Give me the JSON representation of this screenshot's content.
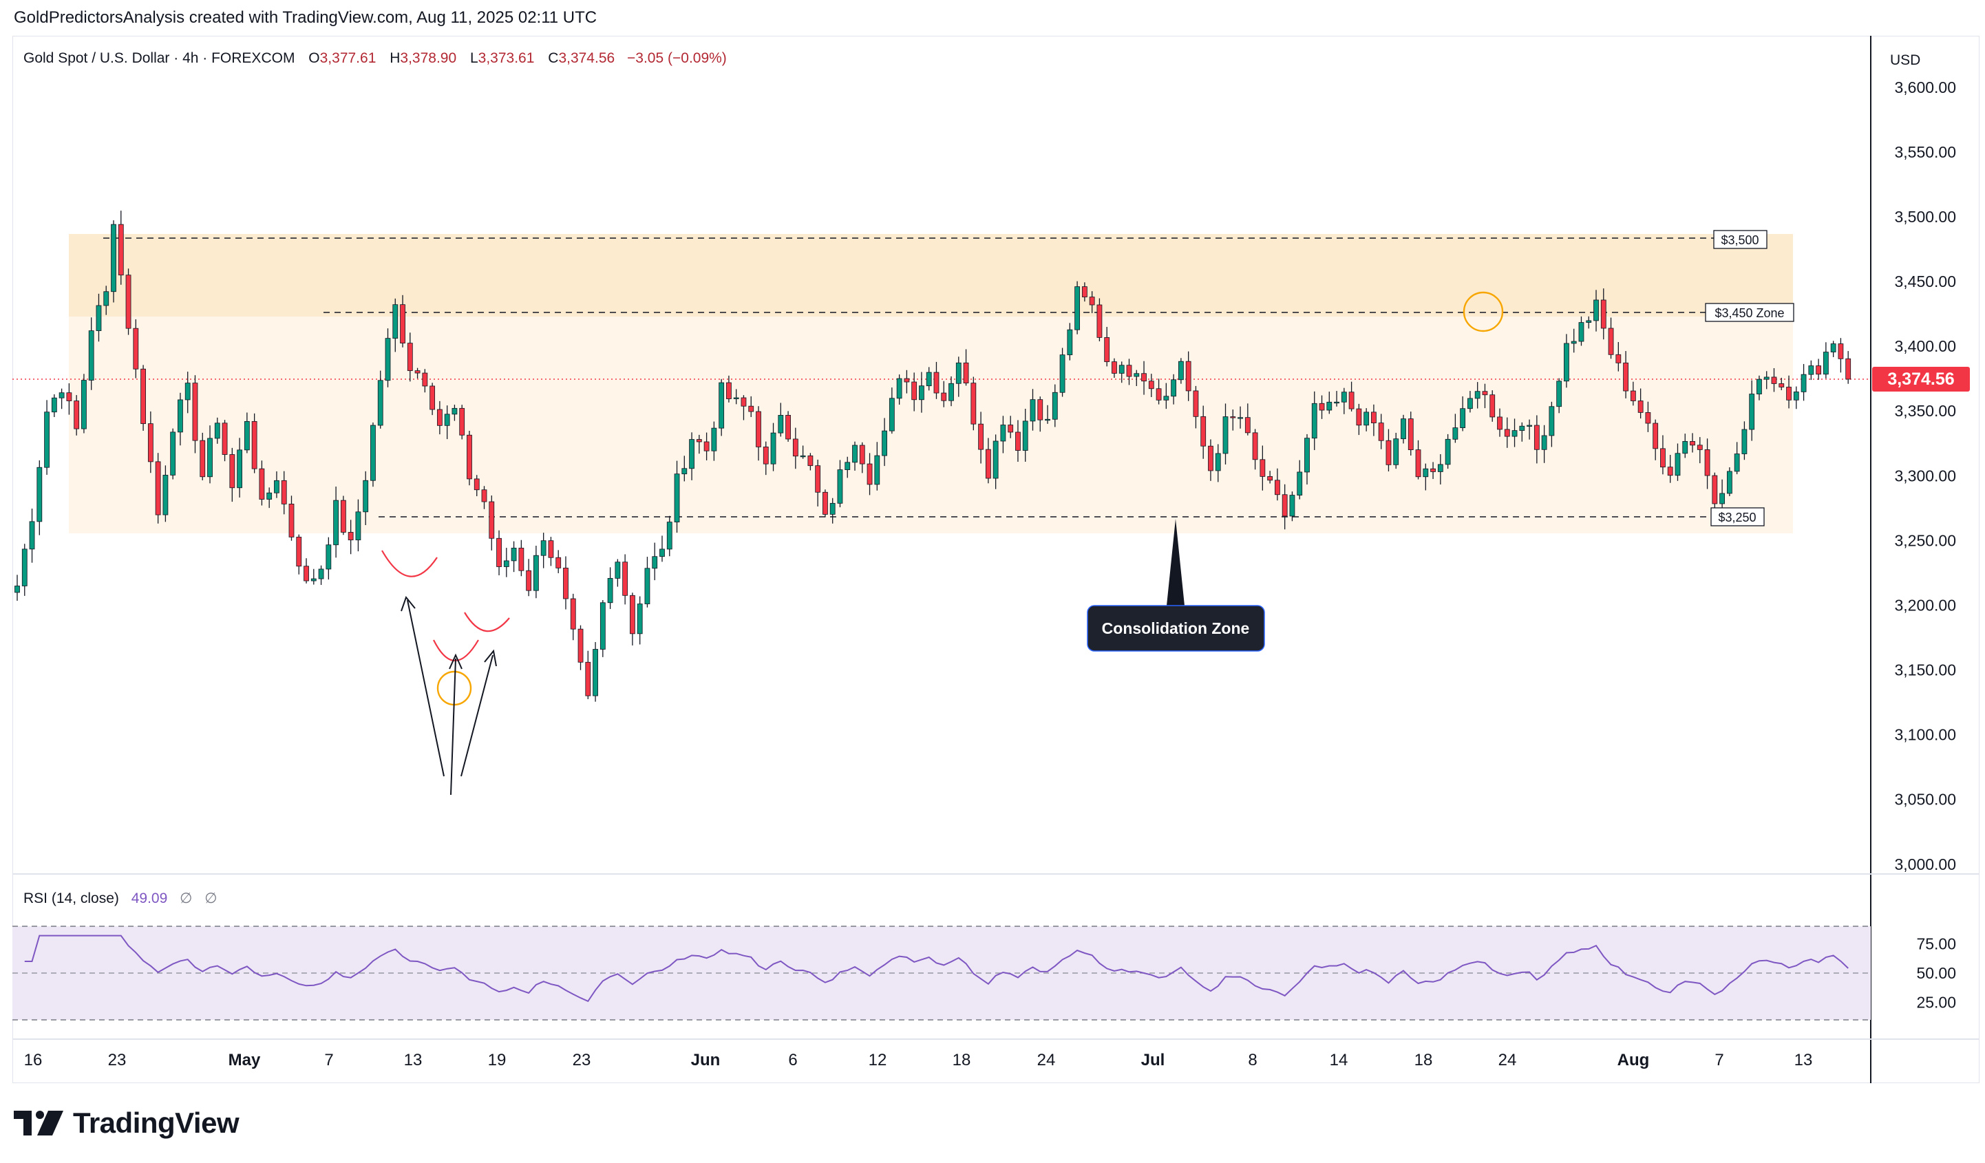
{
  "header": {
    "caption": "GoldPredictorsAnalysis created with TradingView.com, Aug 11, 2025 02:11 UTC"
  },
  "symbol_legend": {
    "name": "Gold Spot / U.S. Dollar · 4h · FOREXCOM",
    "o_label": "O",
    "o_value": "3,377.61",
    "h_label": "H",
    "h_value": "3,378.90",
    "l_label": "L",
    "l_value": "3,373.61",
    "c_label": "C",
    "c_value": "3,374.56",
    "change": "−3.05 (−0.09%)"
  },
  "rsi_legend": {
    "name": "RSI (14, close)",
    "value": "49.09",
    "extra1": "∅",
    "extra2": "∅"
  },
  "currency": "USD",
  "last_price_tag": "3,374.56",
  "annotations": {
    "level_3500": "$3,500",
    "level_3450": "$3,450 Zone",
    "level_3250": "$3,250",
    "consolidation": "Consolidation Zone"
  },
  "logo_text": "TradingView",
  "colors": {
    "up": "#089981",
    "down": "#f23645",
    "rsi_line": "#7e57c2",
    "rsi_band": "#ede7f6",
    "zone_upper": "#fdebd0",
    "zone_lower": "#fff6e9",
    "price_tag": "#f23645",
    "circle": "#f7a600"
  },
  "chart_data": {
    "type": "candlestick",
    "instrument": "Gold Spot / U.S. Dollar",
    "timeframe": "4h",
    "currency": "USD",
    "ylim": [
      2960,
      3650
    ],
    "y_ticks": [
      3000,
      3050,
      3100,
      3150,
      3200,
      3250,
      3300,
      3350,
      3400,
      3450,
      3500,
      3550,
      3600
    ],
    "y_tick_labels": [
      "3,000.00",
      "3,050.00",
      "3,100.00",
      "3,150.00",
      "3,200.00",
      "3,250.00",
      "3,300.00",
      "3,350.00",
      "3,400.00",
      "3,450.00",
      "3,500.00",
      "3,550.00",
      "3,600.00"
    ],
    "x_tick_labels": [
      "16",
      "23",
      "May",
      "7",
      "13",
      "19",
      "23",
      "Jun",
      "6",
      "12",
      "18",
      "24",
      "Jul",
      "8",
      "14",
      "18",
      "24",
      "Aug",
      "7",
      "13"
    ],
    "last_price": 3374.56,
    "horizontal_levels": [
      {
        "label": "$3,500",
        "value": 3500
      },
      {
        "label": "$3,450 Zone",
        "value": 3430
      },
      {
        "label": "$3,250",
        "value": 3258
      }
    ],
    "zones": [
      {
        "from": 3430,
        "to": 3500
      },
      {
        "from": 3245,
        "to": 3430
      }
    ],
    "price_path": [
      [
        0,
        3215
      ],
      [
        2,
        3270
      ],
      [
        4,
        3350
      ],
      [
        6,
        3370
      ],
      [
        8,
        3335
      ],
      [
        10,
        3415
      ],
      [
        12,
        3440
      ],
      [
        13,
        3500
      ],
      [
        14,
        3455
      ],
      [
        16,
        3380
      ],
      [
        18,
        3310
      ],
      [
        19,
        3270
      ],
      [
        21,
        3340
      ],
      [
        23,
        3365
      ],
      [
        25,
        3300
      ],
      [
        27,
        3345
      ],
      [
        29,
        3290
      ],
      [
        31,
        3345
      ],
      [
        33,
        3275
      ],
      [
        35,
        3300
      ],
      [
        37,
        3255
      ],
      [
        39,
        3215
      ],
      [
        41,
        3230
      ],
      [
        43,
        3275
      ],
      [
        45,
        3245
      ],
      [
        47,
        3300
      ],
      [
        49,
        3375
      ],
      [
        51,
        3430
      ],
      [
        53,
        3385
      ],
      [
        55,
        3375
      ],
      [
        57,
        3340
      ],
      [
        59,
        3350
      ],
      [
        61,
        3300
      ],
      [
        63,
        3280
      ],
      [
        65,
        3225
      ],
      [
        67,
        3245
      ],
      [
        69,
        3215
      ],
      [
        71,
        3255
      ],
      [
        73,
        3225
      ],
      [
        75,
        3175
      ],
      [
        77,
        3125
      ],
      [
        79,
        3200
      ],
      [
        81,
        3240
      ],
      [
        83,
        3180
      ],
      [
        85,
        3230
      ],
      [
        87,
        3240
      ],
      [
        89,
        3295
      ],
      [
        91,
        3330
      ],
      [
        93,
        3320
      ],
      [
        95,
        3365
      ],
      [
        97,
        3355
      ],
      [
        99,
        3350
      ],
      [
        101,
        3305
      ],
      [
        103,
        3350
      ],
      [
        105,
        3320
      ],
      [
        107,
        3305
      ],
      [
        109,
        3265
      ],
      [
        111,
        3300
      ],
      [
        113,
        3330
      ],
      [
        115,
        3300
      ],
      [
        117,
        3330
      ],
      [
        119,
        3380
      ],
      [
        121,
        3365
      ],
      [
        123,
        3380
      ],
      [
        125,
        3360
      ],
      [
        127,
        3390
      ],
      [
        129,
        3345
      ],
      [
        131,
        3305
      ],
      [
        133,
        3345
      ],
      [
        135,
        3325
      ],
      [
        137,
        3360
      ],
      [
        139,
        3340
      ],
      [
        141,
        3390
      ],
      [
        143,
        3440
      ],
      [
        145,
        3430
      ],
      [
        147,
        3390
      ],
      [
        149,
        3380
      ],
      [
        151,
        3385
      ],
      [
        153,
        3370
      ],
      [
        155,
        3360
      ],
      [
        157,
        3390
      ],
      [
        159,
        3340
      ],
      [
        161,
        3305
      ],
      [
        163,
        3340
      ],
      [
        165,
        3345
      ],
      [
        167,
        3310
      ],
      [
        169,
        3290
      ],
      [
        171,
        3270
      ],
      [
        173,
        3300
      ],
      [
        175,
        3350
      ],
      [
        177,
        3350
      ],
      [
        179,
        3360
      ],
      [
        181,
        3345
      ],
      [
        183,
        3340
      ],
      [
        185,
        3310
      ],
      [
        187,
        3340
      ],
      [
        189,
        3300
      ],
      [
        191,
        3300
      ],
      [
        193,
        3330
      ],
      [
        195,
        3345
      ],
      [
        197,
        3370
      ],
      [
        199,
        3350
      ],
      [
        201,
        3330
      ],
      [
        203,
        3345
      ],
      [
        205,
        3320
      ],
      [
        207,
        3355
      ],
      [
        209,
        3400
      ],
      [
        211,
        3415
      ],
      [
        213,
        3430
      ],
      [
        215,
        3395
      ],
      [
        217,
        3370
      ],
      [
        219,
        3350
      ],
      [
        221,
        3320
      ],
      [
        223,
        3305
      ],
      [
        225,
        3330
      ],
      [
        227,
        3320
      ],
      [
        229,
        3285
      ],
      [
        231,
        3300
      ],
      [
        233,
        3335
      ],
      [
        235,
        3380
      ],
      [
        237,
        3375
      ],
      [
        239,
        3365
      ],
      [
        241,
        3375
      ],
      [
        243,
        3385
      ],
      [
        245,
        3405
      ],
      [
        247,
        3380
      ]
    ],
    "rsi": {
      "name": "RSI (14, close)",
      "last": 49.09,
      "ylim": [
        22,
        84
      ],
      "y_tick_labels": [
        "75.00",
        "50.00",
        "25.00"
      ],
      "y_ticks": [
        75,
        50,
        25
      ],
      "bands": [
        30,
        70
      ],
      "midline": 50
    }
  }
}
